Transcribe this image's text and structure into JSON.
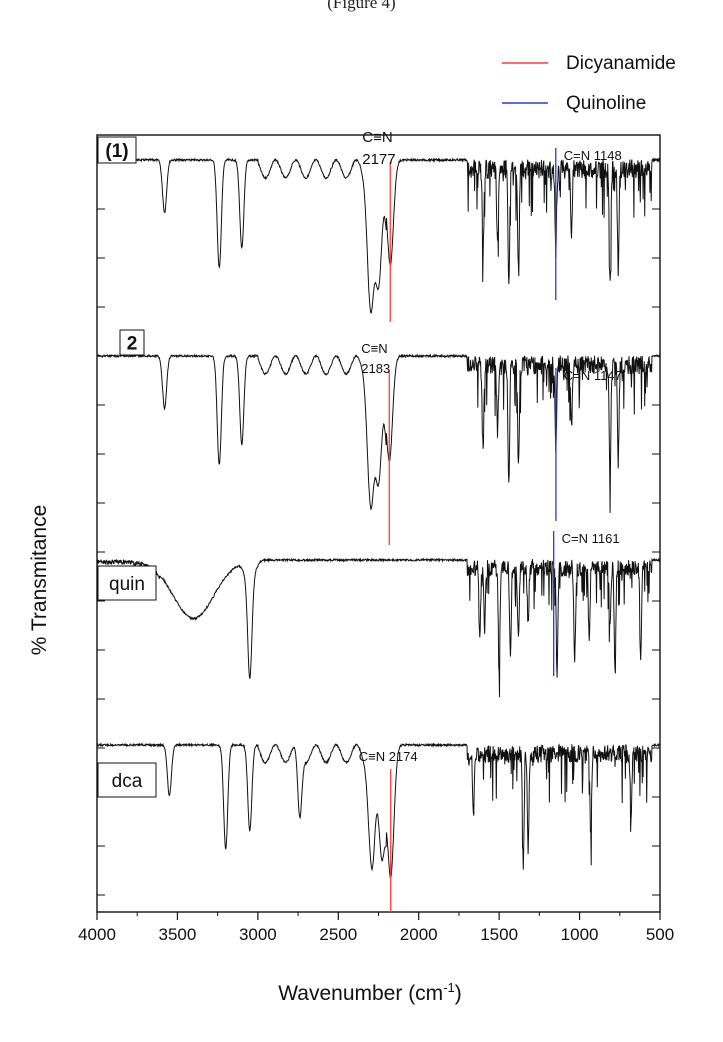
{
  "caption_top": "(Figure 4)",
  "chart_data": {
    "type": "line",
    "xlabel": "Wavenumber (cm-1)",
    "ylabel": "% Transmitance",
    "xlim": [
      4000,
      500
    ],
    "xticks": [
      4000,
      3500,
      3000,
      2500,
      2000,
      1500,
      1000,
      500
    ],
    "x_reversed": true,
    "grid": false,
    "legend": {
      "placement": "top-right",
      "entries": [
        {
          "name": "Dicyanamide",
          "color": "#ff3b3b"
        },
        {
          "name": "Quinoline",
          "color": "#2a3bd6"
        }
      ]
    },
    "series": [
      {
        "name": "(1)",
        "bold": true,
        "peaks_cm1": [
          3580,
          3240,
          3100,
          2298,
          2250,
          2177,
          1600,
          1510,
          1440,
          1380,
          1148,
          1050,
          810,
          760
        ]
      },
      {
        "name": "2",
        "bold": true,
        "peaks_cm1": [
          3580,
          3240,
          3100,
          2298,
          2250,
          2183,
          1600,
          1510,
          1440,
          1380,
          1147,
          1050,
          810,
          760
        ]
      },
      {
        "name": "quin",
        "bold": false,
        "peaks_cm1": [
          3400,
          3050,
          1620,
          1590,
          1500,
          1430,
          1380,
          1320,
          1140,
          1030,
          940,
          810,
          780,
          620
        ]
      },
      {
        "name": "dca",
        "bold": false,
        "peaks_cm1": [
          3550,
          3200,
          3050,
          2740,
          2290,
          2230,
          2174,
          1660,
          1350,
          1320,
          930,
          680
        ]
      }
    ],
    "annotations": [
      {
        "series": "(1)",
        "group": "Dicyanamide",
        "line1": "C≡N",
        "line2": "2177",
        "wavenumber": 2177
      },
      {
        "series": "(1)",
        "group": "Quinoline",
        "text": "C=N 1148",
        "wavenumber": 1148
      },
      {
        "series": "2",
        "group": "Dicyanamide",
        "line1": "C≡N",
        "line2": "2183",
        "wavenumber": 2183
      },
      {
        "series": "2",
        "group": "Quinoline",
        "text": "C=N 1147",
        "wavenumber": 1147
      },
      {
        "series": "quin",
        "group": "Quinoline",
        "text": "C=N 1161",
        "wavenumber": 1161
      },
      {
        "series": "dca",
        "group": "Dicyanamide",
        "text": "C≡N 2174",
        "wavenumber": 2174
      }
    ]
  }
}
